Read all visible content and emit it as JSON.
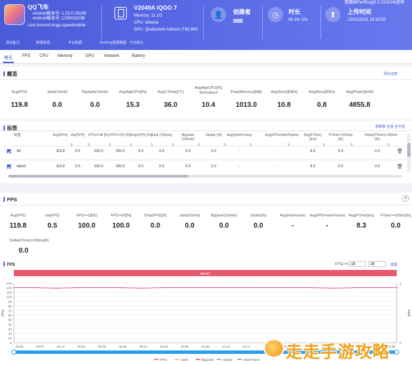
{
  "header": {
    "app_name": "QQ飞车",
    "android_ver": "Android版本号: 1.23.0.18198",
    "android_code": "Android版本号: 1230018198",
    "package": "com.tencent.tmgp.speedmobile",
    "device": "V2049A iQOO 7",
    "memory": "Memory: 11.1G",
    "cpu": "CPU: lahaina",
    "gpu": "GPU: Qualcomm Adreno (TM) 660",
    "creator_label": "创建者",
    "duration_label": "时长",
    "duration_value": "0h 2m 10s",
    "upload_label": "上传时间",
    "upload_value": "15/01/2021 19:39:55",
    "perfdog_ver": "数据由PerfDog(5.0.210104)提供",
    "sub_notes": [
      "测试备注：",
      "数据来源：",
      "平台数据：",
      "PerfDog数据截图 · 平台统计："
    ]
  },
  "tabs": [
    "概览",
    "FPS",
    "CPU",
    "Memory",
    "GPU",
    "Network",
    "Battery"
  ],
  "overview": {
    "title": "概览",
    "export": "导出全部",
    "metrics": [
      {
        "label": "Avg(FPS)",
        "value": "119.8"
      },
      {
        "label": "Jank(/10min)",
        "value": "0.0"
      },
      {
        "label": "BigJank(/10min)",
        "value": "0.0"
      },
      {
        "label": "Avg(AppCPU)[%]",
        "value": "15.3"
      },
      {
        "label": "Avg(CTemp)[°C]",
        "value": "36.0"
      },
      {
        "label": "Avg(AppCPU)[%] Normalized",
        "value": "10.4"
      },
      {
        "label": "Peak(Memory)[MB]",
        "value": "1013.0"
      },
      {
        "label": "Avg(Send)[KB/s]",
        "value": "10.8"
      },
      {
        "label": "Avg(Recv)[KB/s]",
        "value": "0.8"
      },
      {
        "label": "Avg(Power)[mW]",
        "value": "4855.8"
      }
    ]
  },
  "labels": {
    "title": "标签",
    "links": "参数表 全选 全不选",
    "headers": [
      "标签",
      "Avg(FPS)",
      "Var(FPS)",
      "FPS>=18 [%]",
      "FPS>=25 [%]",
      "Drop(FPS) [/h]",
      "Jank (/10min)",
      "BigJank (/10min)",
      "Stutter [%]",
      "Avg(InterFrame)",
      "Avg(FPS+InterFrame)",
      "Avg(FTime) [ms]",
      "FTime>=100ms [%]",
      "Delta(FTime)>100ms [/h]"
    ],
    "rows": [
      {
        "name": "All",
        "cells": [
          "119.8",
          "0.5",
          "100.0",
          "100.0",
          "0.0",
          "0.0",
          "0.0",
          "0.0",
          "-",
          "-",
          "8.3",
          "0.0",
          "0.0"
        ]
      },
      {
        "name": "label1",
        "cells": [
          "119.8",
          "0.5",
          "100.0",
          "100.0",
          "0.0",
          "0.0",
          "0.0",
          "0.0",
          "-",
          "-",
          "8.3",
          "0.0",
          "0.0"
        ]
      }
    ]
  },
  "fps": {
    "title": "FPS",
    "metrics": [
      {
        "label": "Avg(FPS)",
        "value": "119.8"
      },
      {
        "label": "Var(FPS)",
        "value": "0.5"
      },
      {
        "label": "FPS>=18[%]",
        "value": "100.0"
      },
      {
        "label": "FPS>=25[%]",
        "value": "100.0"
      },
      {
        "label": "Drop(FPS)[/h]",
        "value": "0.0"
      },
      {
        "label": "Jank(/10min)",
        "value": "0.0"
      },
      {
        "label": "BigJank(/10min)",
        "value": "0.0"
      },
      {
        "label": "Stutter[%]",
        "value": "0.0"
      },
      {
        "label": "Avg(InterFrame)",
        "value": "-"
      },
      {
        "label": "Avg(FPS+InterFrame)",
        "value": "-"
      },
      {
        "label": "Avg(FTime)[ms]",
        "value": "8.3"
      },
      {
        "label": "FTime>=100ms[%]",
        "value": "0.0"
      }
    ],
    "extra_label": "Delta(FTime)>100ms[/h]",
    "extra_value": "0.0",
    "chart_title": "FPS",
    "fps_filter_label": "FPS(>=)",
    "fps_filter_a": "18",
    "fps_filter_b": "25",
    "reset": "重置",
    "banner": "label1",
    "y_left_label": "FPS",
    "y_right_label": "Jank",
    "legend": [
      "FPS",
      "Jank",
      "BigJank",
      "Stutter",
      "InterFrame"
    ],
    "legend_colors": [
      "#e8407a",
      "#e8a040",
      "#d03030",
      "#3aa3e0",
      "#777777"
    ]
  },
  "chart_data": {
    "type": "line",
    "title": "FPS",
    "ylabel": "FPS",
    "y2label": "Jank",
    "ylim": [
      0,
      130
    ],
    "y_ticks": [
      0,
      10,
      20,
      30,
      40,
      50,
      60,
      70,
      80,
      90,
      100,
      110,
      120,
      130
    ],
    "y2_ticks": [
      0,
      1
    ],
    "x_ticks": [
      "00:00",
      "00:07",
      "00:14",
      "00:21",
      "00:28",
      "00:35",
      "00:42",
      "00:49",
      "00:56",
      "01:03",
      "01:10",
      "01:17",
      "01:24",
      "01:31",
      "01:38",
      "01:45",
      "01:52",
      "01:59",
      "02:06"
    ],
    "series": [
      {
        "name": "FPS",
        "values": [
          120,
          120,
          119,
          120,
          120,
          120,
          119,
          120,
          120,
          120,
          120,
          120,
          120,
          120,
          120,
          119,
          120,
          120,
          120
        ]
      }
    ],
    "legend": [
      "FPS",
      "Jank",
      "BigJank",
      "Stutter",
      "InterFrame"
    ]
  },
  "watermark": "走走手游攻略"
}
